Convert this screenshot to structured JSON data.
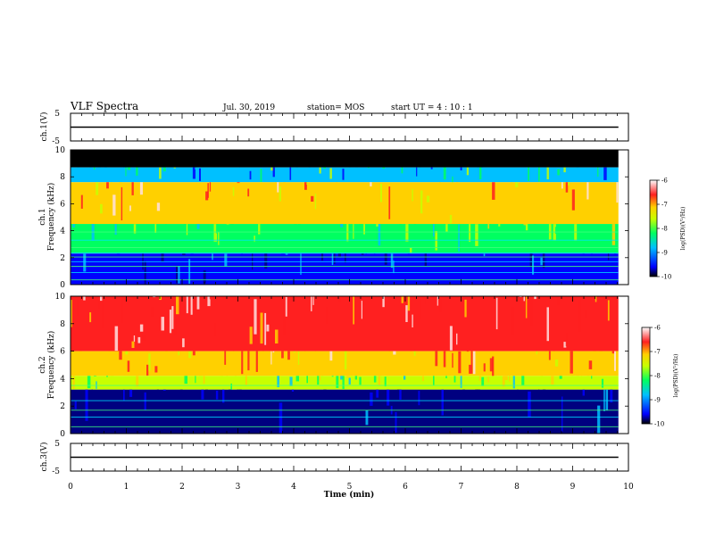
{
  "header": {
    "title": "VLF Spectra",
    "date": "Jul. 30, 2019",
    "station": "station= MOS",
    "start": "start  UT =  4 : 10 : 1"
  },
  "chart_data": [
    {
      "type": "line",
      "panel": "ch1-waveform",
      "ylabel": "ch.1(V)",
      "ylim": [
        -5,
        5
      ],
      "yticks": [
        "5",
        "-5"
      ],
      "xlim": [
        0,
        10
      ],
      "series": [
        {
          "x": [
            0,
            9.82
          ],
          "values": [
            0,
            0
          ]
        }
      ]
    },
    {
      "type": "heatmap",
      "panel": "ch1-spectrogram",
      "ylabel": "ch.1\nFrequency (kHz)",
      "ylim": [
        0,
        10
      ],
      "yticks": [
        "0",
        "2",
        "4",
        "6",
        "8",
        "10"
      ],
      "xlim": [
        0,
        10
      ],
      "x_data_end": 9.82,
      "colorbar": {
        "label": "log(PSD)(V²/Hz)",
        "range": [
          -10,
          -6
        ],
        "ticks": [
          "-6",
          "-7",
          "-8",
          "-9",
          "-10"
        ]
      },
      "bands": [
        {
          "from": 8.7,
          "to": 10,
          "level": "none"
        },
        {
          "from": 7.6,
          "to": 8.7,
          "level": -8.4
        },
        {
          "from": 4.5,
          "to": 7.6,
          "level": -6.8
        },
        {
          "from": 2.3,
          "to": 4.5,
          "level": -8.0
        },
        {
          "from": 0,
          "to": 2.3,
          "level": -9.3
        }
      ],
      "tones_khz": [
        0.35,
        0.9,
        1.35,
        1.7,
        2.05,
        2.35,
        2.75,
        3.3,
        3.9
      ]
    },
    {
      "type": "heatmap",
      "panel": "ch2-spectrogram",
      "ylabel": "ch.2\nFrequency (kHz)",
      "ylim": [
        0,
        10
      ],
      "yticks": [
        "0",
        "2",
        "4",
        "6",
        "8",
        "10"
      ],
      "xlim": [
        0,
        10
      ],
      "x_data_end": 9.82,
      "colorbar": {
        "label": "log(PSD)(V²/Hz)",
        "range": [
          -10,
          -6
        ],
        "ticks": [
          "-6",
          "-7",
          "-8",
          "-9",
          "-10"
        ]
      },
      "bands": [
        {
          "from": 6.0,
          "to": 10,
          "level": -6.3
        },
        {
          "from": 4.2,
          "to": 6.0,
          "level": -6.8
        },
        {
          "from": 3.2,
          "to": 4.2,
          "level": -7.8
        },
        {
          "from": 0,
          "to": 3.2,
          "level": -9.6
        }
      ],
      "tones_khz": [
        0.5,
        1.2,
        1.7,
        2.4,
        3.5
      ]
    },
    {
      "type": "line",
      "panel": "ch3-waveform",
      "ylabel": "ch.3(V)",
      "ylim": [
        -5,
        5
      ],
      "yticks": [
        "5",
        "-5"
      ],
      "xlim": [
        0,
        10
      ],
      "xlabel": "Time (min)",
      "xticks": [
        "0",
        "1",
        "2",
        "3",
        "4",
        "5",
        "6",
        "7",
        "8",
        "9",
        "10"
      ],
      "series": [
        {
          "x": [
            0,
            9.82
          ],
          "values": [
            0,
            0
          ]
        }
      ]
    }
  ],
  "colors": {
    "scale": [
      "#000080",
      "#0000ff",
      "#00c0ff",
      "#00ff60",
      "#c8ff00",
      "#ffd000",
      "#ff2020",
      "#ffe0e0"
    ],
    "saturated": "#000000"
  }
}
